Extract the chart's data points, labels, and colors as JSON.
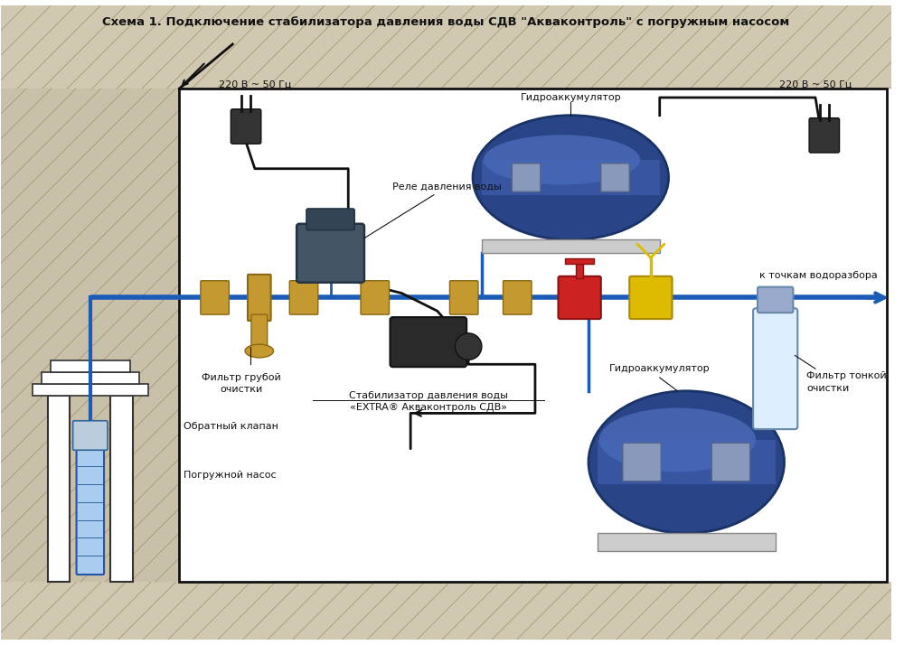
{
  "title": "Схема 1. Подключение стабилизатора давления воды СДВ \"Акваконтроль\" с погружным насосом",
  "label_power1": "220 В ~ 50 Гц",
  "label_power2": "220 В ~ 50 Гц",
  "label_relay": "Реле давления воды",
  "label_hydro1": "Гидроаккумулятор",
  "label_hydro2": "Гидроаккумулятор",
  "label_filter_coarse": "Фильтр грубой\nочистки",
  "label_filter_fine": "Фильтр тонкой\nочистки",
  "label_check_valve": "Обратный клапан",
  "label_pump": "Погружной насос",
  "label_stabilizer": "Стабилизатор давления воды\n«EXTRA® Акваконтроль СДВ»",
  "label_water": "к точкам водоразбора",
  "ground_fc": "#d0c8b0",
  "hatch_c": "#a09070",
  "interior_fc": "#ffffff",
  "border_c": "#111111",
  "pipe_c": "#1a5cb8",
  "wire_c": "#111111",
  "tank_dark": "#2a4488",
  "tank_mid": "#4466bb",
  "tank_light": "#6688dd",
  "brass": "#c49a30",
  "brass_dark": "#8a6810",
  "relay_fc": "#445566",
  "relay_ec": "#223344",
  "stab_fc": "#2a2a2a",
  "plug_fc": "#333333",
  "ff_fc": "#ddeeff",
  "ff_ec": "#6688aa",
  "figsize": [
    10.0,
    7.14
  ],
  "dpi": 100
}
